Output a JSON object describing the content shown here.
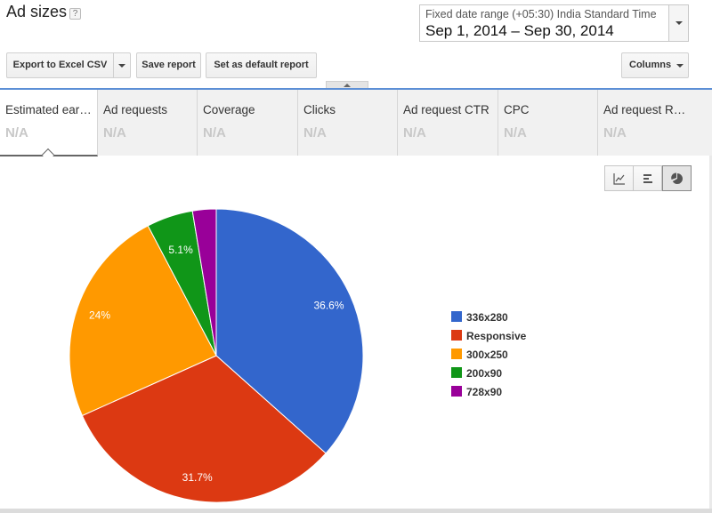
{
  "header": {
    "title": "Ad sizes",
    "help_icon": "question-icon"
  },
  "date_range": {
    "label": "Fixed date range (+05:30) India Standard Time",
    "value": "Sep 1, 2014 – Sep 30, 2014"
  },
  "toolbar": {
    "export_label": "Export to Excel CSV",
    "save_label": "Save report",
    "default_label": "Set as default report",
    "columns_label": "Columns"
  },
  "metrics": [
    {
      "name": "Estimated earnings",
      "display_name": "Estimated ear…",
      "value": "N/A",
      "active": true
    },
    {
      "name": "Ad requests",
      "display_name": "Ad requests",
      "value": "N/A"
    },
    {
      "name": "Coverage",
      "display_name": "Coverage",
      "value": "N/A"
    },
    {
      "name": "Clicks",
      "display_name": "Clicks",
      "value": "N/A"
    },
    {
      "name": "Ad request CTR",
      "display_name": "Ad request CTR",
      "value": "N/A"
    },
    {
      "name": "CPC",
      "display_name": "CPC",
      "value": "N/A"
    },
    {
      "name": "Ad request RPM",
      "display_name": "Ad request R…",
      "value": "N/A"
    }
  ],
  "view_toggles": [
    {
      "icon": "line-chart-icon",
      "selected": false
    },
    {
      "icon": "bar-chart-icon",
      "selected": false
    },
    {
      "icon": "pie-chart-icon",
      "selected": true
    }
  ],
  "chart_data": {
    "type": "pie",
    "categories": [
      "336x280",
      "Responsive",
      "300x250",
      "200x90",
      "728x90"
    ],
    "values": [
      36.6,
      31.7,
      24.0,
      5.1,
      2.6
    ],
    "labels": [
      "36.6%",
      "31.7%",
      "24%",
      "5.1%",
      ""
    ],
    "colors": [
      "#3366cc",
      "#dc3912",
      "#ff9900",
      "#109618",
      "#990099"
    ],
    "legend_position": "right"
  }
}
